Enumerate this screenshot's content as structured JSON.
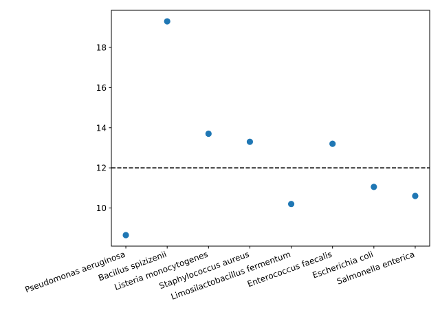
{
  "chart_data": {
    "type": "scatter",
    "title": "",
    "xlabel": "",
    "ylabel": "",
    "categories": [
      "Pseudomonas aeruginosa",
      "Bacillus spizizenii",
      "Listeria monocytogenes",
      "Staphylococcus aureus",
      "Limosilactobacillus fermentum",
      "Enterococcus faecalis",
      "Escherichia coli",
      "Salmonella enterica"
    ],
    "values": [
      8.65,
      19.3,
      13.7,
      13.3,
      10.2,
      13.2,
      11.05,
      10.6
    ],
    "ylim": [
      8.1,
      19.85
    ],
    "yticks": [
      10,
      12,
      14,
      16,
      18
    ],
    "reference_line": {
      "y": 12,
      "style": "dashed",
      "color": "#000000"
    },
    "marker_color": "#1f77b4",
    "grid": false,
    "legend": "none"
  }
}
